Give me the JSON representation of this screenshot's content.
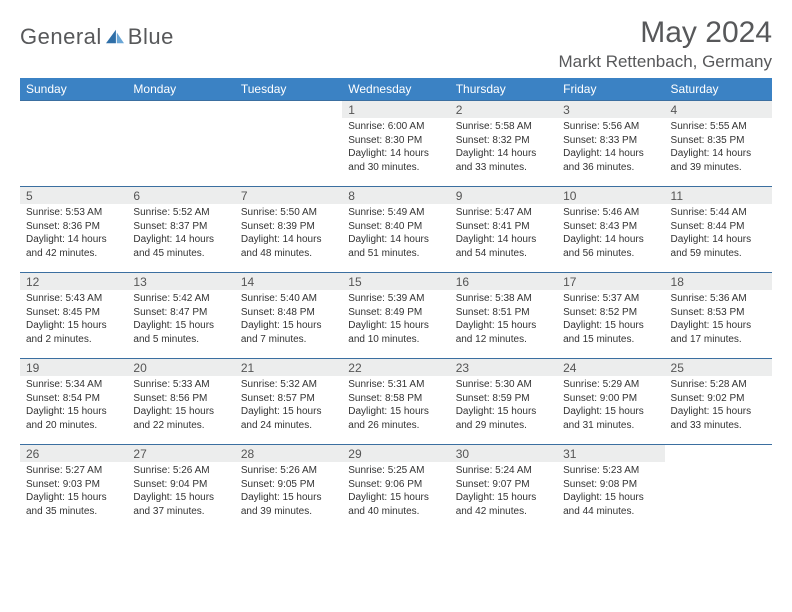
{
  "brand": {
    "word1": "General",
    "word2": "Blue"
  },
  "title": "May 2024",
  "location": "Markt Rettenbach, Germany",
  "colors": {
    "headerBg": "#3b82c4",
    "headerText": "#ffffff",
    "dayNumBg": "#eceded",
    "borderTop": "#3b6fa0",
    "bodyText": "#333333",
    "titleText": "#57585a"
  },
  "weekdays": [
    "Sunday",
    "Monday",
    "Tuesday",
    "Wednesday",
    "Thursday",
    "Friday",
    "Saturday"
  ],
  "weeks": [
    [
      {
        "day": "",
        "sunrise": "",
        "sunset": "",
        "daylight": ""
      },
      {
        "day": "",
        "sunrise": "",
        "sunset": "",
        "daylight": ""
      },
      {
        "day": "",
        "sunrise": "",
        "sunset": "",
        "daylight": ""
      },
      {
        "day": "1",
        "sunrise": "Sunrise: 6:00 AM",
        "sunset": "Sunset: 8:30 PM",
        "daylight": "Daylight: 14 hours and 30 minutes."
      },
      {
        "day": "2",
        "sunrise": "Sunrise: 5:58 AM",
        "sunset": "Sunset: 8:32 PM",
        "daylight": "Daylight: 14 hours and 33 minutes."
      },
      {
        "day": "3",
        "sunrise": "Sunrise: 5:56 AM",
        "sunset": "Sunset: 8:33 PM",
        "daylight": "Daylight: 14 hours and 36 minutes."
      },
      {
        "day": "4",
        "sunrise": "Sunrise: 5:55 AM",
        "sunset": "Sunset: 8:35 PM",
        "daylight": "Daylight: 14 hours and 39 minutes."
      }
    ],
    [
      {
        "day": "5",
        "sunrise": "Sunrise: 5:53 AM",
        "sunset": "Sunset: 8:36 PM",
        "daylight": "Daylight: 14 hours and 42 minutes."
      },
      {
        "day": "6",
        "sunrise": "Sunrise: 5:52 AM",
        "sunset": "Sunset: 8:37 PM",
        "daylight": "Daylight: 14 hours and 45 minutes."
      },
      {
        "day": "7",
        "sunrise": "Sunrise: 5:50 AM",
        "sunset": "Sunset: 8:39 PM",
        "daylight": "Daylight: 14 hours and 48 minutes."
      },
      {
        "day": "8",
        "sunrise": "Sunrise: 5:49 AM",
        "sunset": "Sunset: 8:40 PM",
        "daylight": "Daylight: 14 hours and 51 minutes."
      },
      {
        "day": "9",
        "sunrise": "Sunrise: 5:47 AM",
        "sunset": "Sunset: 8:41 PM",
        "daylight": "Daylight: 14 hours and 54 minutes."
      },
      {
        "day": "10",
        "sunrise": "Sunrise: 5:46 AM",
        "sunset": "Sunset: 8:43 PM",
        "daylight": "Daylight: 14 hours and 56 minutes."
      },
      {
        "day": "11",
        "sunrise": "Sunrise: 5:44 AM",
        "sunset": "Sunset: 8:44 PM",
        "daylight": "Daylight: 14 hours and 59 minutes."
      }
    ],
    [
      {
        "day": "12",
        "sunrise": "Sunrise: 5:43 AM",
        "sunset": "Sunset: 8:45 PM",
        "daylight": "Daylight: 15 hours and 2 minutes."
      },
      {
        "day": "13",
        "sunrise": "Sunrise: 5:42 AM",
        "sunset": "Sunset: 8:47 PM",
        "daylight": "Daylight: 15 hours and 5 minutes."
      },
      {
        "day": "14",
        "sunrise": "Sunrise: 5:40 AM",
        "sunset": "Sunset: 8:48 PM",
        "daylight": "Daylight: 15 hours and 7 minutes."
      },
      {
        "day": "15",
        "sunrise": "Sunrise: 5:39 AM",
        "sunset": "Sunset: 8:49 PM",
        "daylight": "Daylight: 15 hours and 10 minutes."
      },
      {
        "day": "16",
        "sunrise": "Sunrise: 5:38 AM",
        "sunset": "Sunset: 8:51 PM",
        "daylight": "Daylight: 15 hours and 12 minutes."
      },
      {
        "day": "17",
        "sunrise": "Sunrise: 5:37 AM",
        "sunset": "Sunset: 8:52 PM",
        "daylight": "Daylight: 15 hours and 15 minutes."
      },
      {
        "day": "18",
        "sunrise": "Sunrise: 5:36 AM",
        "sunset": "Sunset: 8:53 PM",
        "daylight": "Daylight: 15 hours and 17 minutes."
      }
    ],
    [
      {
        "day": "19",
        "sunrise": "Sunrise: 5:34 AM",
        "sunset": "Sunset: 8:54 PM",
        "daylight": "Daylight: 15 hours and 20 minutes."
      },
      {
        "day": "20",
        "sunrise": "Sunrise: 5:33 AM",
        "sunset": "Sunset: 8:56 PM",
        "daylight": "Daylight: 15 hours and 22 minutes."
      },
      {
        "day": "21",
        "sunrise": "Sunrise: 5:32 AM",
        "sunset": "Sunset: 8:57 PM",
        "daylight": "Daylight: 15 hours and 24 minutes."
      },
      {
        "day": "22",
        "sunrise": "Sunrise: 5:31 AM",
        "sunset": "Sunset: 8:58 PM",
        "daylight": "Daylight: 15 hours and 26 minutes."
      },
      {
        "day": "23",
        "sunrise": "Sunrise: 5:30 AM",
        "sunset": "Sunset: 8:59 PM",
        "daylight": "Daylight: 15 hours and 29 minutes."
      },
      {
        "day": "24",
        "sunrise": "Sunrise: 5:29 AM",
        "sunset": "Sunset: 9:00 PM",
        "daylight": "Daylight: 15 hours and 31 minutes."
      },
      {
        "day": "25",
        "sunrise": "Sunrise: 5:28 AM",
        "sunset": "Sunset: 9:02 PM",
        "daylight": "Daylight: 15 hours and 33 minutes."
      }
    ],
    [
      {
        "day": "26",
        "sunrise": "Sunrise: 5:27 AM",
        "sunset": "Sunset: 9:03 PM",
        "daylight": "Daylight: 15 hours and 35 minutes."
      },
      {
        "day": "27",
        "sunrise": "Sunrise: 5:26 AM",
        "sunset": "Sunset: 9:04 PM",
        "daylight": "Daylight: 15 hours and 37 minutes."
      },
      {
        "day": "28",
        "sunrise": "Sunrise: 5:26 AM",
        "sunset": "Sunset: 9:05 PM",
        "daylight": "Daylight: 15 hours and 39 minutes."
      },
      {
        "day": "29",
        "sunrise": "Sunrise: 5:25 AM",
        "sunset": "Sunset: 9:06 PM",
        "daylight": "Daylight: 15 hours and 40 minutes."
      },
      {
        "day": "30",
        "sunrise": "Sunrise: 5:24 AM",
        "sunset": "Sunset: 9:07 PM",
        "daylight": "Daylight: 15 hours and 42 minutes."
      },
      {
        "day": "31",
        "sunrise": "Sunrise: 5:23 AM",
        "sunset": "Sunset: 9:08 PM",
        "daylight": "Daylight: 15 hours and 44 minutes."
      },
      {
        "day": "",
        "sunrise": "",
        "sunset": "",
        "daylight": ""
      }
    ]
  ]
}
